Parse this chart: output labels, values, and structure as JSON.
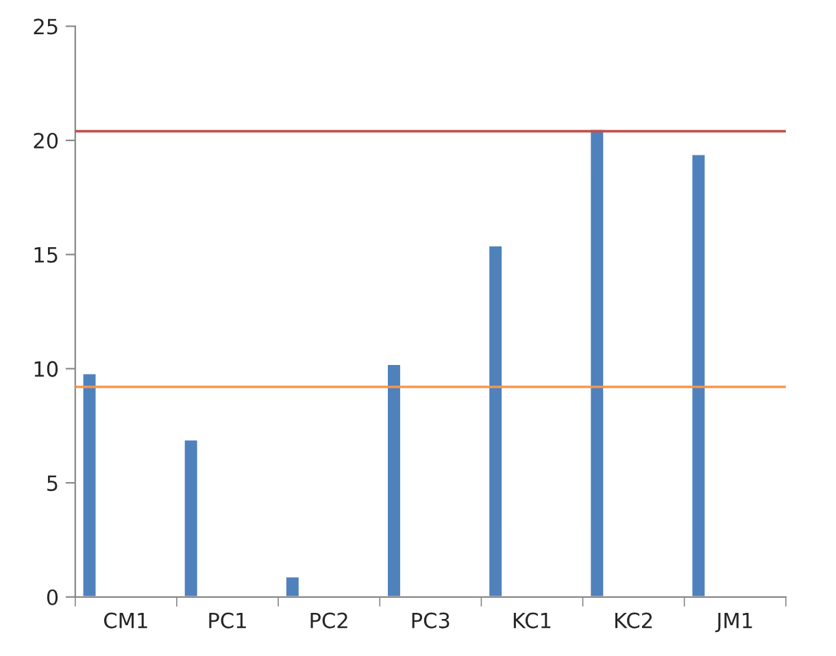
{
  "chart_data": {
    "type": "bar",
    "categories": [
      "CM1",
      "PC1",
      "PC2",
      "PC3",
      "KC1",
      "KC2",
      "JM1"
    ],
    "values": [
      9.8,
      6.9,
      0.9,
      10.2,
      15.4,
      20.5,
      19.4
    ],
    "color": "#4f81bd",
    "ylim": [
      0,
      25
    ],
    "yticks": [
      0,
      5,
      10,
      15,
      20,
      25
    ],
    "ref_lines": [
      {
        "axis": "y",
        "value": 20.4,
        "color": "#c0504d",
        "line_style": "solid"
      },
      {
        "axis": "y",
        "value": 9.2,
        "color": "#f79646",
        "line_style": "solid"
      }
    ],
    "grid": false,
    "legend": false
  }
}
